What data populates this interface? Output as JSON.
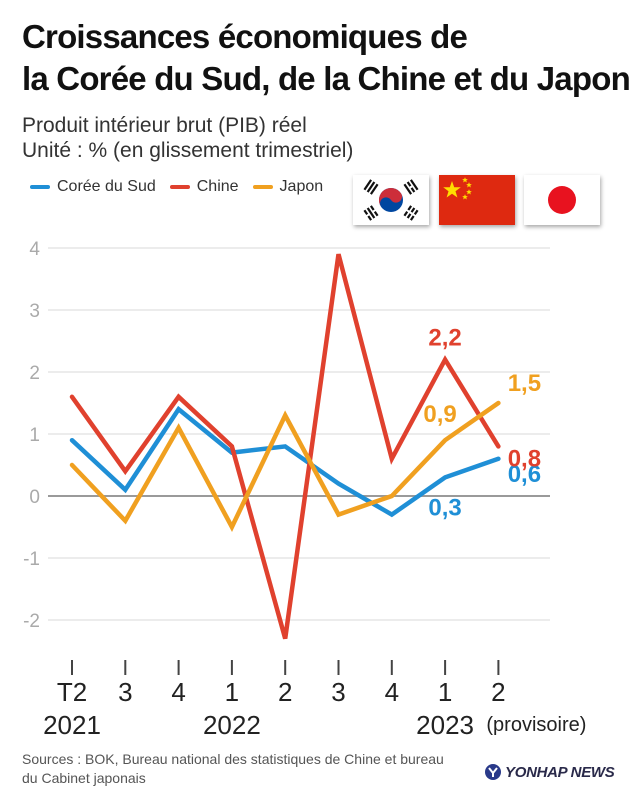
{
  "title_line1": "Croissances économiques de",
  "title_line2": "la Corée du Sud, de la Chine et du Japon",
  "subtitle_line1": "Produit intérieur brut (PIB) réel",
  "subtitle_line2": "Unité : % (en glissement trimestriel)",
  "source_text": "Sources : BOK, Bureau national des statistiques de Chine et bureau du Cabinet japonais",
  "logo_text": "YONHAP NEWS",
  "flags": [
    {
      "name": "south-korea-flag-icon"
    },
    {
      "name": "china-flag-icon"
    },
    {
      "name": "japan-flag-icon"
    }
  ],
  "chart_data": {
    "type": "line",
    "categories": [
      "T2",
      "3",
      "4",
      "1",
      "2",
      "3",
      "4",
      "1",
      "2"
    ],
    "year_labels": [
      {
        "text": "2021",
        "index": 0
      },
      {
        "text": "2022",
        "index": 3
      },
      {
        "text": "2023",
        "index": 7
      }
    ],
    "note_label": {
      "text": "(provisoire)",
      "index": 8
    },
    "ylim": [
      -2.2,
      4.2
    ],
    "yticks": [
      4,
      3,
      2,
      1,
      0,
      -1,
      -2
    ],
    "grid": true,
    "legend_position": "top-left",
    "series": [
      {
        "name": "Corée du Sud",
        "color": "#1f8fd6",
        "values": [
          0.9,
          0.1,
          1.4,
          0.7,
          0.8,
          0.2,
          -0.3,
          0.3,
          0.6
        ],
        "labels": [
          {
            "index": 7,
            "text": "0,3"
          },
          {
            "index": 8,
            "text": "0,6"
          }
        ]
      },
      {
        "name": "Chine",
        "color": "#e0412e",
        "values": [
          1.6,
          0.4,
          1.6,
          0.8,
          -2.3,
          3.9,
          0.6,
          2.2,
          0.8
        ],
        "labels": [
          {
            "index": 7,
            "text": "2,2"
          },
          {
            "index": 8,
            "text": "0,8"
          }
        ]
      },
      {
        "name": "Japon",
        "color": "#f0a020",
        "values": [
          0.5,
          -0.4,
          1.1,
          -0.5,
          1.3,
          -0.3,
          0.0,
          0.9,
          1.5
        ],
        "labels": [
          {
            "index": 7,
            "text": "0,9"
          },
          {
            "index": 8,
            "text": "1,5"
          }
        ]
      }
    ]
  }
}
